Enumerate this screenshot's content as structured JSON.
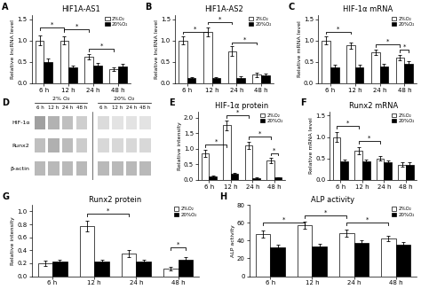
{
  "chart_data": [
    {
      "type": "bar",
      "panel_label": "A",
      "title": "HIF1A-AS1",
      "y_label": "Relative lncRNA level",
      "categories": [
        "6 h",
        "12 h",
        "24 h",
        "48 h"
      ],
      "series": [
        {
          "name": "2%O₂",
          "color": "white",
          "values": [
            1.0,
            1.0,
            0.62,
            0.33
          ],
          "errors": [
            0.12,
            0.1,
            0.06,
            0.05
          ]
        },
        {
          "name": "20%O₂",
          "color": "black",
          "values": [
            0.5,
            0.37,
            0.42,
            0.4
          ],
          "errors": [
            0.08,
            0.05,
            0.05,
            0.06
          ]
        }
      ],
      "ylim": [
        0,
        1.6
      ],
      "yticks": [
        {
          "value": 0,
          "label": "0.0"
        },
        0.5,
        {
          "value": 1,
          "label": "1.0"
        },
        1.5
      ],
      "significance": [
        {
          "from": [
            0,
            0
          ],
          "to": [
            1,
            0
          ],
          "y": 1.25,
          "label": "*"
        },
        {
          "from": [
            1,
            0
          ],
          "to": [
            2,
            0
          ],
          "y": 1.2,
          "label": "*"
        },
        {
          "from": [
            2,
            0
          ],
          "to": [
            3,
            0
          ],
          "y": 0.75,
          "label": "*"
        }
      ],
      "legend": "upper right"
    },
    {
      "type": "bar",
      "panel_label": "B",
      "title": "HIF1A-AS2",
      "y_label": "Relative lncRNA level",
      "categories": [
        "6 h",
        "12 h",
        "24 h",
        "48 h"
      ],
      "series": [
        {
          "name": "2%O₂",
          "color": "white",
          "values": [
            1.0,
            1.2,
            0.75,
            0.2
          ],
          "errors": [
            0.1,
            0.1,
            0.12,
            0.05
          ]
        },
        {
          "name": "20%O₂",
          "color": "black",
          "values": [
            0.12,
            0.12,
            0.12,
            0.18
          ],
          "errors": [
            0.03,
            0.03,
            0.04,
            0.05
          ]
        }
      ],
      "ylim": [
        0,
        1.6
      ],
      "yticks": [
        {
          "value": 0,
          "label": "0.0"
        },
        0.5,
        {
          "value": 1,
          "label": "1.0"
        },
        1.5
      ],
      "significance": [
        {
          "from": [
            0,
            0
          ],
          "to": [
            1,
            0
          ],
          "y": 1.15,
          "label": "*"
        },
        {
          "from": [
            1,
            0
          ],
          "to": [
            2,
            0
          ],
          "y": 1.38,
          "label": "*"
        },
        {
          "from": [
            2,
            0
          ],
          "to": [
            3,
            0
          ],
          "y": 0.9,
          "label": "*"
        }
      ],
      "legend": "upper right"
    },
    {
      "type": "bar",
      "panel_label": "C",
      "title": "HIF-1α mRNA",
      "y_label": "Relative mRNA level",
      "categories": [
        "6 h",
        "12 h",
        "24 h",
        "48 h"
      ],
      "series": [
        {
          "name": "2%O₂",
          "color": "white",
          "values": [
            1.0,
            0.88,
            0.72,
            0.6
          ],
          "errors": [
            0.1,
            0.08,
            0.07,
            0.06
          ]
        },
        {
          "name": "20%O₂",
          "color": "black",
          "values": [
            0.38,
            0.38,
            0.4,
            0.45
          ],
          "errors": [
            0.05,
            0.05,
            0.05,
            0.06
          ]
        }
      ],
      "ylim": [
        0,
        1.6
      ],
      "yticks": [
        {
          "value": 0,
          "label": "0.0"
        },
        0.5,
        {
          "value": 1,
          "label": "1.0"
        },
        1.5
      ],
      "significance": [
        {
          "from": [
            0,
            0
          ],
          "to": [
            1,
            0
          ],
          "y": 1.15,
          "label": "*"
        },
        {
          "from": [
            2,
            0
          ],
          "to": [
            3,
            0
          ],
          "y": 0.85,
          "label": "*"
        },
        {
          "from": [
            3,
            0
          ],
          "to": [
            3,
            1
          ],
          "y": 0.72,
          "label": "*"
        }
      ],
      "legend": "upper right"
    },
    {
      "type": "heatmap",
      "panel_label": "D",
      "column_groups": [
        "2% O₂",
        "20% O₂"
      ],
      "categories": [
        "6 h",
        "12 h",
        "24 h",
        "48 h"
      ],
      "rows": [
        "HIF-1α",
        "Runx2",
        "β-actin"
      ],
      "cells": [
        [
          0.75,
          0.6,
          0.5,
          0.38,
          0.28,
          0.22,
          0.22,
          0.22
        ],
        [
          0.5,
          0.62,
          0.52,
          0.4,
          0.3,
          0.3,
          0.3,
          0.3
        ],
        [
          0.55,
          0.55,
          0.55,
          0.55,
          0.55,
          0.55,
          0.55,
          0.55
        ]
      ]
    },
    {
      "type": "bar",
      "panel_label": "E",
      "title": "HIF-1α protein",
      "y_label": "Relative intensity",
      "categories": [
        "6 h",
        "12 h",
        "24 h",
        "48 h"
      ],
      "series": [
        {
          "name": "2%O₂",
          "color": "white",
          "values": [
            0.85,
            1.75,
            1.1,
            0.62
          ],
          "errors": [
            0.12,
            0.15,
            0.12,
            0.08
          ]
        },
        {
          "name": "20%O₂",
          "color": "black",
          "values": [
            0.1,
            0.18,
            0.05,
            0.07
          ],
          "errors": [
            0.03,
            0.04,
            0.02,
            0.02
          ]
        }
      ],
      "ylim": [
        0,
        2.2
      ],
      "yticks": [
        {
          "value": 0,
          "label": "0.0"
        },
        0.5,
        {
          "value": 1,
          "label": "1.0"
        },
        1.5,
        {
          "value": 2,
          "label": "2.0"
        }
      ],
      "significance": [
        {
          "from": [
            0,
            0
          ],
          "to": [
            1,
            0
          ],
          "y": 1.05,
          "label": "*"
        },
        {
          "from": [
            1,
            0
          ],
          "to": [
            2,
            0
          ],
          "y": 2.0,
          "label": "*"
        },
        {
          "from": [
            2,
            0
          ],
          "to": [
            3,
            0
          ],
          "y": 1.3,
          "label": "*"
        },
        {
          "from": [
            3,
            0
          ],
          "to": [
            3,
            1
          ],
          "y": 0.78,
          "label": "*"
        }
      ],
      "legend": "upper right"
    },
    {
      "type": "bar",
      "panel_label": "F",
      "title": "Runx2 mRNA",
      "y_label": "Relative mRNA level",
      "categories": [
        "6 h",
        "12 h",
        "24 h",
        "48 h"
      ],
      "series": [
        {
          "name": "2%O₂",
          "color": "white",
          "values": [
            1.0,
            0.68,
            0.5,
            0.35
          ],
          "errors": [
            0.12,
            0.08,
            0.06,
            0.05
          ]
        },
        {
          "name": "20%O₂",
          "color": "black",
          "values": [
            0.42,
            0.42,
            0.4,
            0.35
          ],
          "errors": [
            0.06,
            0.06,
            0.05,
            0.05
          ]
        }
      ],
      "ylim": [
        0,
        1.6
      ],
      "yticks": [
        {
          "value": 0,
          "label": "0.0"
        },
        0.5,
        {
          "value": 1,
          "label": "1.0"
        },
        1.5
      ],
      "significance": [
        {
          "from": [
            0,
            0
          ],
          "to": [
            1,
            0
          ],
          "y": 1.2,
          "label": "*"
        },
        {
          "from": [
            1,
            0
          ],
          "to": [
            2,
            0
          ],
          "y": 0.85,
          "label": "*"
        }
      ],
      "legend": "upper right"
    },
    {
      "type": "bar",
      "panel_label": "G",
      "title": "Runx2 protein",
      "y_label": "Relative intensity",
      "categories": [
        "6 h",
        "12 h",
        "24 h",
        "48 h"
      ],
      "series": [
        {
          "name": "2%O₂",
          "color": "white",
          "values": [
            0.2,
            0.77,
            0.35,
            0.12
          ],
          "errors": [
            0.04,
            0.08,
            0.05,
            0.03
          ]
        },
        {
          "name": "20%O₂",
          "color": "black",
          "values": [
            0.22,
            0.22,
            0.22,
            0.25
          ],
          "errors": [
            0.04,
            0.04,
            0.04,
            0.04
          ]
        }
      ],
      "ylim": [
        0,
        1.1
      ],
      "yticks": [
        {
          "value": 0,
          "label": "0.0"
        },
        0.2,
        0.4,
        0.6,
        0.8,
        {
          "value": 1,
          "label": "1.0"
        }
      ],
      "significance": [
        {
          "from": [
            1,
            0
          ],
          "to": [
            2,
            0
          ],
          "y": 0.92,
          "label": "*"
        },
        {
          "from": [
            3,
            0
          ],
          "to": [
            3,
            1
          ],
          "y": 0.4,
          "label": "*"
        }
      ],
      "legend": "upper right"
    },
    {
      "type": "bar",
      "panel_label": "H",
      "title": "ALP activity",
      "y_label": "ALP activity",
      "categories": [
        "6 h",
        "12 h",
        "24 h",
        "48 h"
      ],
      "series": [
        {
          "name": "2%O₂",
          "color": "white",
          "values": [
            47,
            57,
            48,
            42
          ],
          "errors": [
            4,
            4,
            4,
            3
          ]
        },
        {
          "name": "20%O₂",
          "color": "black",
          "values": [
            32,
            33,
            37,
            35
          ],
          "errors": [
            3,
            3,
            3,
            3
          ]
        }
      ],
      "ylim": [
        0,
        80
      ],
      "yticks": [
        0,
        20,
        40,
        60,
        80
      ],
      "significance": [
        {
          "from": [
            0,
            0
          ],
          "to": [
            1,
            0
          ],
          "y": 57,
          "label": "*"
        },
        {
          "from": [
            1,
            0
          ],
          "to": [
            2,
            0
          ],
          "y": 65,
          "label": "*"
        },
        {
          "from": [
            2,
            0
          ],
          "to": [
            3,
            0
          ],
          "y": 57,
          "label": "*"
        }
      ],
      "legend": "upper right"
    }
  ]
}
